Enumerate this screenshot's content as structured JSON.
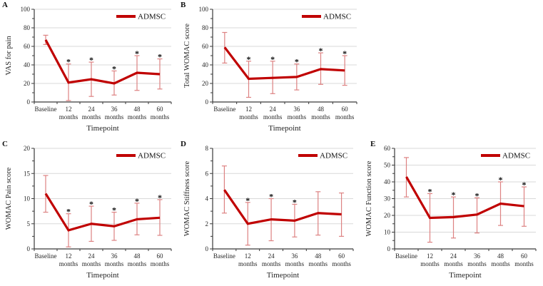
{
  "figure": {
    "legend_label": "ADMSC",
    "xlabel": "Timepoint",
    "colors": {
      "line": "#c00000",
      "error_bar": "#dd8282",
      "gridline": "#d9d9d9",
      "axis": "#3a3a3a",
      "text": "#262626",
      "star": "#111111"
    }
  },
  "chart_data": [
    {
      "panel": "A",
      "type": "line",
      "ylabel": "VAS for pain",
      "xlabel": "Timepoint",
      "legend": "ADMSC",
      "ylim": [
        0,
        100
      ],
      "ytick_major": 20,
      "ytick_minor": 10,
      "categories": [
        "Baseline",
        "12 months",
        "24 months",
        "36 months",
        "48 months",
        "60 months"
      ],
      "series": [
        {
          "name": "ADMSC",
          "values": [
            67,
            21,
            24.5,
            20,
            31.5,
            30
          ],
          "err_low": [
            62,
            1.5,
            6,
            7.5,
            12.5,
            14
          ],
          "err_high": [
            72,
            41,
            43,
            33.5,
            50,
            46.5
          ]
        }
      ],
      "significant_points": [
        1,
        2,
        3,
        4,
        5
      ],
      "sig_symbol": "*"
    },
    {
      "panel": "B",
      "type": "line",
      "ylabel": "Total WOMAC score",
      "xlabel": "Timepoint",
      "legend": "ADMSC",
      "ylim": [
        0,
        100
      ],
      "ytick_major": 20,
      "ytick_minor": 10,
      "categories": [
        "Baseline",
        "12 months",
        "24 months",
        "36 months",
        "48 months",
        "60 months"
      ],
      "series": [
        {
          "name": "ADMSC",
          "values": [
            59,
            25,
            26,
            27,
            35.5,
            34
          ],
          "err_low": [
            42,
            5,
            9,
            13,
            19,
            18
          ],
          "err_high": [
            75,
            44,
            44,
            41,
            53,
            50
          ]
        }
      ],
      "significant_points": [
        1,
        2,
        3,
        4,
        5
      ],
      "sig_symbol": "*"
    },
    {
      "panel": "C",
      "type": "line",
      "ylabel": "WOMAC Pain score",
      "xlabel": "Timepoint",
      "legend": "ADMSC",
      "ylim": [
        0,
        20
      ],
      "ytick_major": 5,
      "ytick_minor": 2.5,
      "categories": [
        "Baseline",
        "12 months",
        "24 months",
        "36 months",
        "48 months",
        "60 months"
      ],
      "series": [
        {
          "name": "ADMSC",
          "values": [
            11,
            3.7,
            5,
            4.5,
            5.9,
            6.2
          ],
          "err_low": [
            7.3,
            0.4,
            1.5,
            1.7,
            2.8,
            2.7
          ],
          "err_high": [
            14.6,
            7,
            8.5,
            7.3,
            9.1,
            9.8
          ]
        }
      ],
      "significant_points": [
        1,
        2,
        3,
        4,
        5
      ],
      "sig_symbol": "*"
    },
    {
      "panel": "D",
      "type": "line",
      "ylabel": "WOMAC Stiffness score",
      "xlabel": "Timepoint",
      "legend": "ADMSC",
      "ylim": [
        0,
        8
      ],
      "ytick_major": 2,
      "ytick_minor": 1,
      "categories": [
        "Baseline",
        "12 months",
        "24 months",
        "36 months",
        "48 months",
        "60 months"
      ],
      "series": [
        {
          "name": "ADMSC",
          "values": [
            4.7,
            2,
            2.35,
            2.25,
            2.85,
            2.75
          ],
          "err_low": [
            2.85,
            0.3,
            0.65,
            0.95,
            1.1,
            1
          ],
          "err_high": [
            6.6,
            3.7,
            4,
            3.55,
            4.55,
            4.45
          ]
        }
      ],
      "significant_points": [
        1,
        2,
        3
      ],
      "sig_symbol": "*"
    },
    {
      "panel": "E",
      "type": "line",
      "ylabel": "WOMAC Function score",
      "xlabel": "Timepoint",
      "legend": "ADMSC",
      "ylim": [
        0,
        60
      ],
      "ytick_major": 10,
      "ytick_minor": 5,
      "categories": [
        "Baseline",
        "12 months",
        "24 months",
        "36 months",
        "48 months",
        "60 months"
      ],
      "series": [
        {
          "name": "ADMSC",
          "values": [
            43,
            18.5,
            19,
            20.5,
            27,
            25.5
          ],
          "err_low": [
            31,
            4,
            6.5,
            9.5,
            14,
            13.5
          ],
          "err_high": [
            54.5,
            33,
            31,
            30.5,
            40,
            37
          ]
        }
      ],
      "significant_points": [
        1,
        2,
        3,
        4,
        5
      ],
      "sig_symbol": "*"
    }
  ]
}
